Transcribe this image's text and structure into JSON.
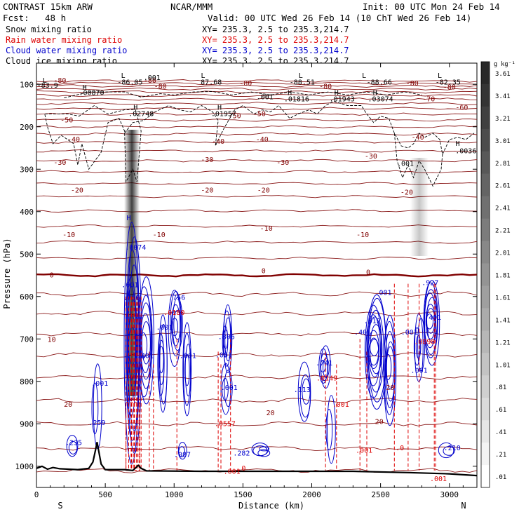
{
  "header": {
    "model": "CONTRAST 15km ARW",
    "center": "NCAR/MMM",
    "init": "Init: 00 UTC Mon 24 Feb 14",
    "fcst_label": "Fcst:",
    "fcst_value": "48 h",
    "valid": "Valid: 00 UTC Wed 26 Feb 14 (10 ChT Wed 26 Feb 14)"
  },
  "legend": [
    {
      "name": "Snow mixing ratio",
      "color": "#000000",
      "xy": "XY= 235.3,  2.5 to 235.3,214.7"
    },
    {
      "name": "Rain water mixing ratio",
      "color": "#dd0000",
      "xy": "XY= 235.3,  2.5 to 235.3,214.7"
    },
    {
      "name": "Cloud water mixing ratio",
      "color": "#0000cc",
      "xy": "XY= 235.3,  2.5 to 235.3,214.7"
    },
    {
      "name": "Cloud ice mixing ratio",
      "color": "#000000",
      "xy": "XY= 235.3,  2.5 to 235.3,214.7"
    }
  ],
  "chart_data": {
    "type": "cross-section",
    "xlabel": "Distance (km)",
    "ylabel": "Pressure (hPa)",
    "xlim": [
      0,
      3200
    ],
    "ylim": [
      1050,
      50
    ],
    "x_ticks": [
      "0",
      "500",
      "1000",
      "1500",
      "2000",
      "2500",
      "3000"
    ],
    "x_tick_values": [
      0,
      500,
      1000,
      1500,
      2000,
      2500,
      3000
    ],
    "y_ticks": [
      "100",
      "200",
      "300",
      "400",
      "500",
      "600",
      "700",
      "800",
      "900",
      "1000"
    ],
    "y_tick_values": [
      100,
      200,
      300,
      400,
      500,
      600,
      700,
      800,
      900,
      1000
    ],
    "x_end_labels": {
      "left": "S",
      "right": "N"
    },
    "colorbar": {
      "unit": "g kg⁻¹",
      "labels": [
        "3.61",
        "3.41",
        "3.21",
        "3.01",
        "2.81",
        "2.61",
        "2.41",
        "2.21",
        "2.01",
        "1.81",
        "1.61",
        "1.41",
        "1.21",
        "1.01",
        ".81",
        ".61",
        ".41",
        ".21",
        ".01"
      ]
    },
    "temperature_labels": [
      {
        "text": "-80",
        "x": 170,
        "p": 96
      },
      {
        "text": "-80",
        "x": 825,
        "p": 96
      },
      {
        "text": "-80",
        "x": 1520,
        "p": 103
      },
      {
        "text": "-80",
        "x": 2730,
        "p": 103
      },
      {
        "text": "-80",
        "x": 3000,
        "p": 112
      },
      {
        "text": "-80",
        "x": 900,
        "p": 110
      },
      {
        "text": "-80",
        "x": 2100,
        "p": 110
      },
      {
        "text": "-70",
        "x": 2850,
        "p": 140
      },
      {
        "text": "-60",
        "x": 3090,
        "p": 160
      },
      {
        "text": "-50",
        "x": 220,
        "p": 190
      },
      {
        "text": "-50",
        "x": 1440,
        "p": 180
      },
      {
        "text": "-50",
        "x": 1620,
        "p": 175
      },
      {
        "text": "-40",
        "x": 270,
        "p": 235
      },
      {
        "text": "-40",
        "x": 1320,
        "p": 240
      },
      {
        "text": "-40",
        "x": 1640,
        "p": 235
      },
      {
        "text": "-40",
        "x": 2770,
        "p": 230
      },
      {
        "text": "-30",
        "x": 170,
        "p": 290
      },
      {
        "text": "-30",
        "x": 1240,
        "p": 283
      },
      {
        "text": "-30",
        "x": 1790,
        "p": 290
      },
      {
        "text": "-30",
        "x": 2430,
        "p": 275
      },
      {
        "text": "-20",
        "x": 295,
        "p": 355
      },
      {
        "text": "-20",
        "x": 1240,
        "p": 355
      },
      {
        "text": "-20",
        "x": 1650,
        "p": 355
      },
      {
        "text": "-20",
        "x": 2690,
        "p": 360
      },
      {
        "text": "-10",
        "x": 235,
        "p": 460
      },
      {
        "text": "-10",
        "x": 890,
        "p": 460
      },
      {
        "text": "-10",
        "x": 1670,
        "p": 445
      },
      {
        "text": "-10",
        "x": 2370,
        "p": 460
      },
      {
        "text": "0",
        "x": 110,
        "p": 555
      },
      {
        "text": "0",
        "x": 1650,
        "p": 545
      },
      {
        "text": "0",
        "x": 2410,
        "p": 548
      },
      {
        "text": "10",
        "x": 110,
        "p": 707
      },
      {
        "text": "20",
        "x": 230,
        "p": 860
      },
      {
        "text": "20",
        "x": 1700,
        "p": 880
      },
      {
        "text": "20",
        "x": 2570,
        "p": 820
      },
      {
        "text": "20",
        "x": 2490,
        "p": 900
      }
    ],
    "snow_labels": [
      {
        "text": "L",
        "x": 630,
        "p": 85
      },
      {
        "text": "-86.05",
        "x": 680,
        "p": 100
      },
      {
        "text": ".001",
        "x": 840,
        "p": 90
      },
      {
        "text": "L",
        "x": 1210,
        "p": 85
      },
      {
        "text": "87.68",
        "x": 1270,
        "p": 100
      },
      {
        "text": "L",
        "x": 1920,
        "p": 85
      },
      {
        "text": "-88.51",
        "x": 1930,
        "p": 100
      },
      {
        "text": "L",
        "x": 2380,
        "p": 85
      },
      {
        "text": "-88.66",
        "x": 2490,
        "p": 100
      },
      {
        "text": "L",
        "x": 2930,
        "p": 85
      },
      {
        "text": "-82.35",
        "x": 2990,
        "p": 100
      },
      {
        "text": "L",
        "x": 60,
        "p": 96
      },
      {
        "text": "-83.9",
        "x": 80,
        "p": 108
      },
      {
        "text": "H",
        "x": 350,
        "p": 113
      },
      {
        "text": ".00870",
        "x": 400,
        "p": 125
      },
      {
        "text": ".001",
        "x": 1660,
        "p": 135
      },
      {
        "text": "H",
        "x": 1840,
        "p": 125
      },
      {
        "text": ".01816",
        "x": 1890,
        "p": 140
      },
      {
        "text": "H",
        "x": 2180,
        "p": 125
      },
      {
        "text": ".01943",
        "x": 2220,
        "p": 140
      },
      {
        "text": "H",
        "x": 2460,
        "p": 125
      },
      {
        "text": ".03074",
        "x": 2500,
        "p": 140
      },
      {
        "text": "H",
        "x": 720,
        "p": 160
      },
      {
        "text": ".02748",
        "x": 760,
        "p": 175
      },
      {
        "text": "H",
        "x": 1330,
        "p": 160
      },
      {
        "text": ".01957",
        "x": 1360,
        "p": 175
      },
      {
        "text": "H",
        "x": 3060,
        "p": 245
      },
      {
        "text": ".0036",
        "x": 3120,
        "p": 262
      },
      {
        "text": ".001",
        "x": 2680,
        "p": 292
      }
    ],
    "cloud_labels": [
      {
        "text": "H",
        "x": 670,
        "p": 420
      },
      {
        "text": ".0074",
        "x": 720,
        "p": 490
      },
      {
        "text": ".001",
        "x": 680,
        "p": 578
      },
      {
        "text": ".756",
        "x": 690,
        "p": 608
      },
      {
        "text": ".756",
        "x": 1020,
        "p": 608
      },
      {
        "text": ".001",
        "x": 2520,
        "p": 596
      },
      {
        "text": ".927",
        "x": 2860,
        "p": 573
      },
      {
        "text": ".401",
        "x": 2880,
        "p": 655
      },
      {
        "text": ".012",
        "x": 2440,
        "p": 663
      },
      {
        "text": ".401",
        "x": 2370,
        "p": 690
      },
      {
        "text": ".001",
        "x": 930,
        "p": 678
      },
      {
        "text": ".401",
        "x": 790,
        "p": 745
      },
      {
        "text": ".001",
        "x": 1100,
        "p": 745
      },
      {
        "text": ".806",
        "x": 1380,
        "p": 700
      },
      {
        "text": ".001",
        "x": 1360,
        "p": 743
      },
      {
        "text": ".741",
        "x": 2090,
        "p": 762
      },
      {
        "text": ".001",
        "x": 2710,
        "p": 690
      },
      {
        "text": ".001",
        "x": 2780,
        "p": 780
      },
      {
        "text": ".001",
        "x": 460,
        "p": 810
      },
      {
        "text": ".001",
        "x": 1400,
        "p": 820
      },
      {
        "text": ".113",
        "x": 1930,
        "p": 825
      },
      {
        "text": ".259",
        "x": 440,
        "p": 903
      },
      {
        "text": ".235",
        "x": 270,
        "p": 950
      },
      {
        "text": ".087",
        "x": 1060,
        "p": 978
      },
      {
        "text": ".282",
        "x": 1490,
        "p": 975
      },
      {
        "text": ".210",
        "x": 3020,
        "p": 962
      }
    ],
    "rain_labels": [
      {
        "text": ".0180",
        "x": 1000,
        "p": 643
      },
      {
        "text": ".0898",
        "x": 2820,
        "p": 712
      },
      {
        "text": ".0149",
        "x": 2110,
        "p": 798
      },
      {
        "text": ".0557",
        "x": 1370,
        "p": 905
      },
      {
        "text": ".001",
        "x": 2210,
        "p": 860
      },
      {
        "text": ".001",
        "x": 2380,
        "p": 968
      },
      {
        "text": ".001",
        "x": 1420,
        "p": 1018
      },
      {
        "text": ".0",
        "x": 1490,
        "p": 1010
      },
      {
        "text": ".0",
        "x": 2640,
        "p": 962
      },
      {
        "text": ".001",
        "x": 2920,
        "p": 1035
      }
    ]
  }
}
